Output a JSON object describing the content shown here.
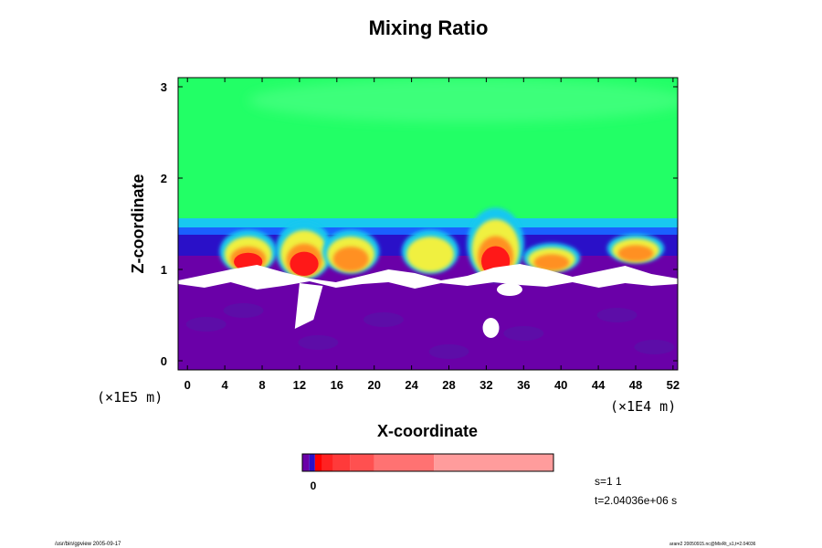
{
  "chart_data": {
    "type": "heatmap",
    "title": "Mixing Ratio",
    "xlabel": "X-coordinate",
    "ylabel": "Z-coordinate",
    "x_ticks": [
      0,
      4,
      8,
      12,
      16,
      20,
      24,
      28,
      32,
      36,
      40,
      44,
      48,
      52
    ],
    "y_ticks": [
      0,
      1,
      2,
      3
    ],
    "xlim": [
      -1,
      52.5
    ],
    "ylim": [
      -0.1,
      3.1
    ],
    "x_scale_note": "(×1E4 m)",
    "y_scale_note": "(×1E5 m)",
    "grid": false,
    "colors": {
      "violet": "#6a00a8",
      "violet_dark": "#5a10a8",
      "blue_deep": "#2a10c8",
      "blue": "#1a60ff",
      "cyan": "#18c8f0",
      "green": "#22ff66",
      "green_light": "#3cff7a",
      "yellow": "#f0f040",
      "orange": "#ff9020",
      "red": "#ff1818",
      "salmon": "#ff7070",
      "pink": "#ff9c9c",
      "white": "#ffffff"
    },
    "structures": [
      {
        "kind": "layer",
        "name": "upper",
        "z": [
          1.55,
          3.1
        ],
        "color": "green"
      },
      {
        "kind": "layer",
        "name": "transition",
        "z": [
          1.15,
          1.55
        ],
        "color": "cyan-blue"
      },
      {
        "kind": "layer",
        "name": "lower",
        "z": [
          -0.1,
          0.85
        ],
        "color": "violet"
      },
      {
        "kind": "plume",
        "x": 6.5,
        "z": [
          1.0,
          1.3
        ],
        "peak": "red"
      },
      {
        "kind": "plume",
        "x": 12.5,
        "z": [
          0.95,
          1.35
        ],
        "peak": "red"
      },
      {
        "kind": "plume",
        "x": 17.5,
        "z": [
          1.0,
          1.3
        ],
        "peak": "orange"
      },
      {
        "kind": "plume",
        "x": 26.0,
        "z": [
          1.0,
          1.3
        ],
        "peak": "yellow"
      },
      {
        "kind": "plume",
        "x": 33.0,
        "z": [
          0.95,
          1.45
        ],
        "peak": "red"
      },
      {
        "kind": "plume",
        "x": 39.0,
        "z": [
          1.0,
          1.2
        ],
        "peak": "orange"
      },
      {
        "kind": "plume",
        "x": 48.0,
        "z": [
          1.1,
          1.3
        ],
        "peak": "orange"
      }
    ],
    "colorbar": {
      "label": "0",
      "segments": [
        {
          "color": "#6a00a8",
          "w": 1
        },
        {
          "color": "#2a10c8",
          "w": 0.8
        },
        {
          "color": "#ff0000",
          "w": 1
        },
        {
          "color": "#ff2222",
          "w": 1.6
        },
        {
          "color": "#ff3a3a",
          "w": 2.4
        },
        {
          "color": "#ff5050",
          "w": 3.4
        },
        {
          "color": "#ff7272",
          "w": 8.5
        },
        {
          "color": "#ff9c9c",
          "w": 17
        }
      ]
    }
  },
  "annotations": {
    "step": "s=1 1",
    "time": "t=2.04036e+06 s",
    "footer_left": "/usr/bin/gpview 2005-09-17",
    "footer_right": "arare2 20050915.nc@MixRt_s1,t=2.04036"
  }
}
